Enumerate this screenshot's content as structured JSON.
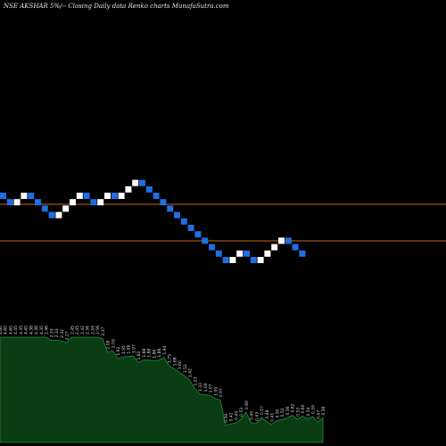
{
  "title": "NSE AKSHAR 5%/-- Closing Daily data Renko charts MunafaSutra.com",
  "chart_data": [
    {
      "type": "renko",
      "reference_lines": [
        "upper",
        "lower"
      ],
      "colors": {
        "up": "#ffffff",
        "down": "#1f6fe0",
        "reference_line": "#c8641e",
        "background": "#000000"
      },
      "bricks": [
        "down",
        "down",
        "up",
        "up",
        "down",
        "down",
        "down",
        "down",
        "up",
        "up",
        "up",
        "up",
        "down",
        "down",
        "up",
        "up",
        "down",
        "up",
        "up",
        "up",
        "down",
        "down",
        "down",
        "down",
        "down",
        "down",
        "down",
        "down",
        "down",
        "down",
        "down",
        "down",
        "down",
        "up",
        "up",
        "down",
        "down",
        "up",
        "up",
        "up",
        "up",
        "down",
        "down",
        "down"
      ],
      "grid": false
    },
    {
      "type": "area",
      "fill": "#0b3d14",
      "line": "#1f8f3a",
      "labels": [
        "4.60",
        "4.60",
        "4.60",
        "4.45",
        "4.45",
        "4.45",
        "4.38",
        "4.38",
        "4.35",
        "2.46",
        "2.33",
        "2.33",
        "2.32",
        "2.27",
        "2.45",
        "2.45",
        "2.42",
        "2.56",
        "2.54",
        "2.56",
        "2.37",
        "2.06",
        "2.09",
        "1.92",
        "1.95",
        "1.96",
        "1.97",
        "1.82",
        "1.88",
        "1.88",
        "1.86",
        "1.88",
        "1.94",
        "1.75",
        "1.68",
        "1.60",
        "1.52",
        "1.42",
        "1.23",
        "1.10",
        "1.09",
        "1.07",
        "1.00",
        "0.97",
        "0.39",
        "0.42",
        "0.45",
        "0.53",
        "0.69",
        "0.45",
        "0.43",
        "0.57",
        "0.48",
        "0.41",
        "0.50",
        "0.52",
        "0.56",
        "0.62",
        "0.53",
        "0.60",
        "0.54",
        "0.59",
        "0.47",
        "0.56"
      ],
      "values": [
        4.6,
        4.6,
        4.6,
        4.45,
        4.45,
        4.45,
        4.38,
        4.38,
        4.35,
        2.46,
        2.33,
        2.33,
        2.32,
        2.27,
        2.45,
        2.45,
        2.42,
        2.56,
        2.54,
        2.56,
        2.37,
        2.06,
        2.09,
        1.92,
        1.95,
        1.96,
        1.97,
        1.82,
        1.88,
        1.88,
        1.86,
        1.88,
        1.94,
        1.75,
        1.68,
        1.6,
        1.52,
        1.42,
        1.23,
        1.1,
        1.09,
        1.07,
        1.0,
        0.97,
        0.39,
        0.42,
        0.45,
        0.53,
        0.69,
        0.45,
        0.43,
        0.57,
        0.48,
        0.41,
        0.5,
        0.52,
        0.56,
        0.62,
        0.53,
        0.6,
        0.54,
        0.59,
        0.47,
        0.56
      ]
    }
  ]
}
